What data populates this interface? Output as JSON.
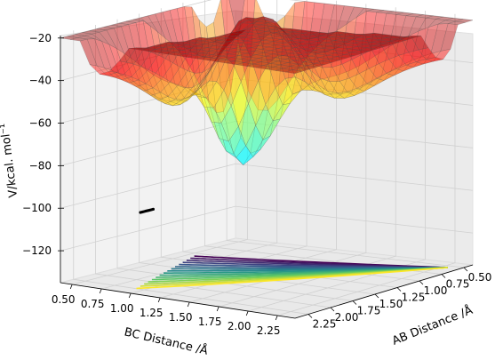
{
  "chart_data": {
    "type": "surface3d",
    "zlabel": "V/kcal. mol⁻¹",
    "xlabel": "BC Distance /Å",
    "ylabel": "AB Distance /Å",
    "z_ticks": [
      "−20",
      "−40",
      "−60",
      "−80",
      "−100",
      "−120"
    ],
    "z_values": [
      -20,
      -40,
      -60,
      -80,
      -100,
      -120
    ],
    "x_ticks": [
      "0.50",
      "0.75",
      "1.00",
      "1.25",
      "1.50",
      "1.75",
      "2.00",
      "2.25"
    ],
    "y_ticks": [
      "0.50",
      "0.75",
      "1.00",
      "1.25",
      "1.50",
      "1.75",
      "2.00",
      "2.25"
    ],
    "zlim": [
      -135,
      -18
    ],
    "colormap_surface": "jet",
    "colormap_contour": "viridis",
    "grid": true,
    "trajectory_marker": "black dots in reactant valley"
  }
}
